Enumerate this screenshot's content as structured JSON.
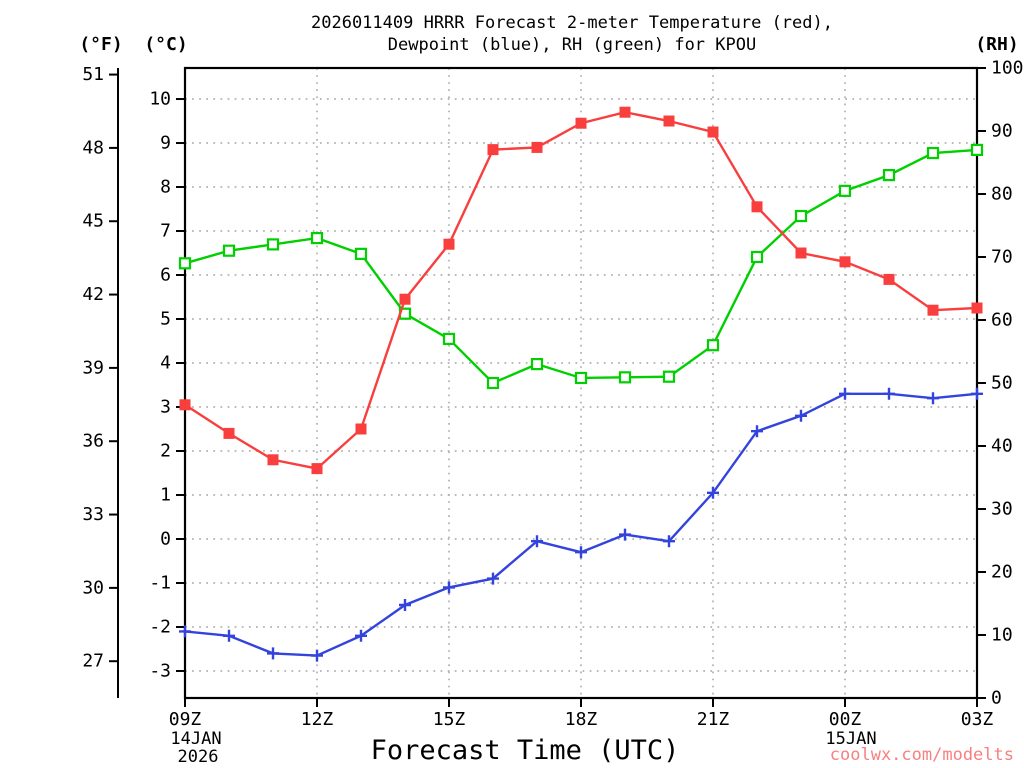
{
  "header": {
    "title_line1": "2026011409 HRRR Forecast 2-meter Temperature (red),",
    "title_line2": "Dewpoint (blue), RH (green) for KPOU",
    "left_f_unit": "(°F)",
    "left_c_unit": "(°C)",
    "right_unit": "(RH)"
  },
  "footer": {
    "x_axis_title": "Forecast Time (UTC)",
    "start_date_line1": "14JAN",
    "start_date_line2": "2026",
    "mid_date": "15JAN",
    "watermark": "coolwx.com/modelts"
  },
  "colors": {
    "temperature_red": "#f93e3e",
    "dewpoint_blue": "#3344dd",
    "rh_green": "#00d000",
    "watermark_salmon": "#f88080",
    "gridline_gray": "#b0b0b0",
    "axis_black": "#000000",
    "background": "#ffffff"
  },
  "chart_data": {
    "type": "line",
    "title": "2026011409 HRRR Forecast 2-meter Temperature (red), Dewpoint (blue), RH (green) for KPOU",
    "xlabel": "Forecast Time (UTC)",
    "grid": "dotted horizontal at each celsius tick, dotted vertical at interior 3-hour ticks",
    "hours": [
      "09Z",
      "10Z",
      "11Z",
      "12Z",
      "13Z",
      "14Z",
      "15Z",
      "16Z",
      "17Z",
      "18Z",
      "19Z",
      "20Z",
      "21Z",
      "22Z",
      "23Z",
      "00Z",
      "01Z",
      "02Z",
      "03Z"
    ],
    "x_tick_labels": [
      "09Z",
      "12Z",
      "15Z",
      "18Z",
      "21Z",
      "00Z",
      "03Z"
    ],
    "x_gridline_ticks": [
      "12Z",
      "15Z",
      "18Z",
      "21Z",
      "00Z"
    ],
    "celsius_ticks": [
      10,
      9,
      8,
      7,
      6,
      5,
      4,
      3,
      2,
      1,
      0,
      -1,
      -2,
      -3
    ],
    "fahrenheit_ticks": [
      51,
      48,
      45,
      42,
      39,
      36,
      33,
      30,
      27
    ],
    "rh_ticks": [
      100,
      90,
      80,
      70,
      60,
      50,
      40,
      30,
      20,
      10,
      0
    ],
    "celsius_axis_range_top": 10.705,
    "celsius_axis_range_bottom": -3.614,
    "rh_axis_range": [
      0,
      100
    ],
    "series": [
      {
        "id": "temperature",
        "name": "2-meter Temperature",
        "unit": "°C",
        "axis": "celsius",
        "color": "#f93e3e",
        "marker": "filled-square",
        "draw_order": 2,
        "values": [
          3.05,
          2.4,
          1.8,
          1.6,
          2.5,
          5.45,
          6.7,
          8.85,
          8.9,
          9.45,
          9.7,
          9.5,
          9.25,
          7.55,
          6.5,
          6.3,
          5.9,
          5.2,
          5.25
        ]
      },
      {
        "id": "dewpoint",
        "name": "Dewpoint",
        "unit": "°C",
        "axis": "celsius",
        "color": "#3344dd",
        "marker": "plus",
        "draw_order": 3,
        "values": [
          -2.1,
          -2.2,
          -2.6,
          -2.65,
          -2.2,
          -1.5,
          -1.1,
          -0.9,
          -0.05,
          -0.3,
          0.1,
          -0.05,
          1.05,
          2.45,
          2.8,
          3.3,
          3.3,
          3.2,
          3.3
        ]
      },
      {
        "id": "rh",
        "name": "RH",
        "unit": "%",
        "axis": "rh",
        "color": "#00d000",
        "marker": "open-square",
        "draw_order": 1,
        "values": [
          69,
          71,
          72,
          73,
          70.5,
          61,
          57,
          50,
          53,
          50.8,
          50.9,
          51,
          56,
          70,
          76.5,
          80.5,
          83,
          86.5,
          87
        ]
      }
    ]
  }
}
